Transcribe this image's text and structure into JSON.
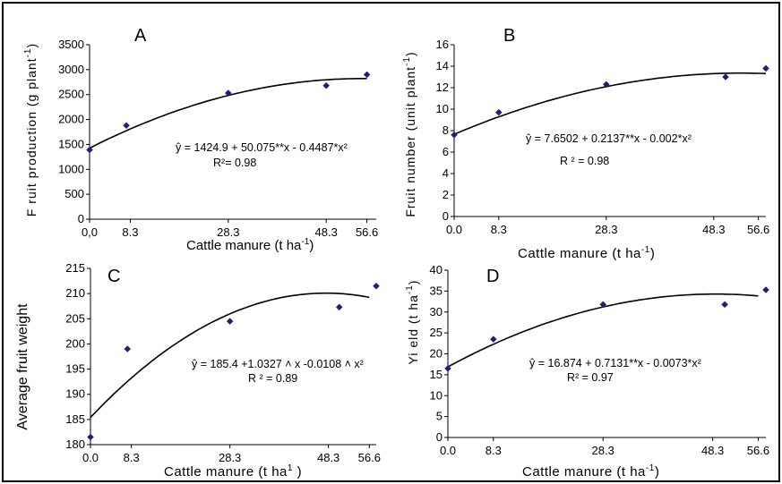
{
  "chart_data": [
    {
      "type": "scatter",
      "panel": "A",
      "xlabel": "Cattle manure (t ha-1)",
      "ylabel": "Fruit production (g plant-1)",
      "x_tick_labels": [
        "0,0",
        "8.3",
        "28.3",
        "48.3",
        "56.6"
      ],
      "x_ticks": [
        0,
        8.3,
        28.3,
        48.3,
        56.6
      ],
      "y_ticks": [
        0,
        500,
        1000,
        1500,
        2000,
        2500,
        3000,
        3500
      ],
      "ylim": [
        0,
        3500
      ],
      "xlim": [
        0,
        58.5
      ],
      "points": [
        {
          "x": 0,
          "y": 1390
        },
        {
          "x": 7.5,
          "y": 1880
        },
        {
          "x": 28.3,
          "y": 2530
        },
        {
          "x": 48.3,
          "y": 2680
        },
        {
          "x": 56.6,
          "y": 2900
        }
      ],
      "fit": {
        "a": 1424.9,
        "b": 50.075,
        "c": -0.4487,
        "x_start": 0,
        "x_end": 56.6
      },
      "equation": "ŷ = 1424.9 + 50.075**x - 0.4487*x²",
      "r2": "R²= 0.98"
    },
    {
      "type": "scatter",
      "panel": "B",
      "xlabel": "Cattle manure (t ha-1)",
      "ylabel": "Fruit number (unit plant-1)",
      "x_tick_labels": [
        "0.0",
        "8.3",
        "28.3",
        "48.3",
        "56.6"
      ],
      "x_ticks": [
        0,
        8.3,
        28.3,
        48.3,
        56.6
      ],
      "y_ticks": [
        0,
        2,
        4,
        6,
        8,
        10,
        12,
        14,
        16
      ],
      "ylim": [
        0,
        16
      ],
      "xlim": [
        0,
        58
      ],
      "points": [
        {
          "x": 0,
          "y": 7.6
        },
        {
          "x": 8.3,
          "y": 9.7
        },
        {
          "x": 28.3,
          "y": 12.3
        },
        {
          "x": 50.5,
          "y": 13.0
        },
        {
          "x": 58,
          "y": 13.8
        }
      ],
      "fit": {
        "a": 7.6502,
        "b": 0.2137,
        "c": -0.002,
        "x_start": 0,
        "x_end": 58
      },
      "equation": "ŷ = 7.6502 + 0.2137**x - 0.002*x²",
      "r2": "R ² = 0.98"
    },
    {
      "type": "scatter",
      "panel": "C",
      "xlabel": "Cattle manure (t ha1 )",
      "ylabel": "Average fruit weight",
      "x_tick_labels": [
        "0.0",
        "8.3",
        "28.3",
        "48.3",
        "56.6"
      ],
      "x_ticks": [
        0,
        8.3,
        28.3,
        48.3,
        56.6
      ],
      "y_ticks": [
        180,
        185,
        190,
        195,
        200,
        205,
        210,
        215
      ],
      "ylim": [
        180,
        215
      ],
      "xlim": [
        0,
        58
      ],
      "points": [
        {
          "x": 0,
          "y": 181.5
        },
        {
          "x": 7.5,
          "y": 199
        },
        {
          "x": 28.3,
          "y": 204.5
        },
        {
          "x": 50.5,
          "y": 207.3
        },
        {
          "x": 58,
          "y": 211.5
        }
      ],
      "fit": {
        "a": 185.4,
        "b": 1.0327,
        "c": -0.0108,
        "x_start": 0,
        "x_end": 56.6
      },
      "equation": "ŷ = 185.4 +1.0327 ˄ x -0.0108 ˄ x²",
      "r2": "R ² = 0.89"
    },
    {
      "type": "scatter",
      "panel": "D",
      "xlabel": "Cattle manure (t ha-1)",
      "ylabel": "Yield (t ha-1)",
      "x_tick_labels": [
        "0.0",
        "8.3",
        "28.3",
        "48.3",
        "56.6"
      ],
      "x_ticks": [
        0,
        8.3,
        28.3,
        48.3,
        56.6
      ],
      "y_ticks": [
        0,
        5,
        10,
        15,
        20,
        25,
        30,
        35,
        40
      ],
      "ylim": [
        0,
        40
      ],
      "xlim": [
        0,
        58
      ],
      "points": [
        {
          "x": 0,
          "y": 16.5
        },
        {
          "x": 8.3,
          "y": 23.5
        },
        {
          "x": 28.3,
          "y": 31.8
        },
        {
          "x": 50.5,
          "y": 31.8
        },
        {
          "x": 58,
          "y": 35.3
        }
      ],
      "fit": {
        "a": 16.874,
        "b": 0.7131,
        "c": -0.0073,
        "x_start": 0,
        "x_end": 56.6
      },
      "equation": "ŷ = 16.874 + 0.7131**x - 0.0073*x²",
      "r2": "R² = 0.97"
    }
  ]
}
